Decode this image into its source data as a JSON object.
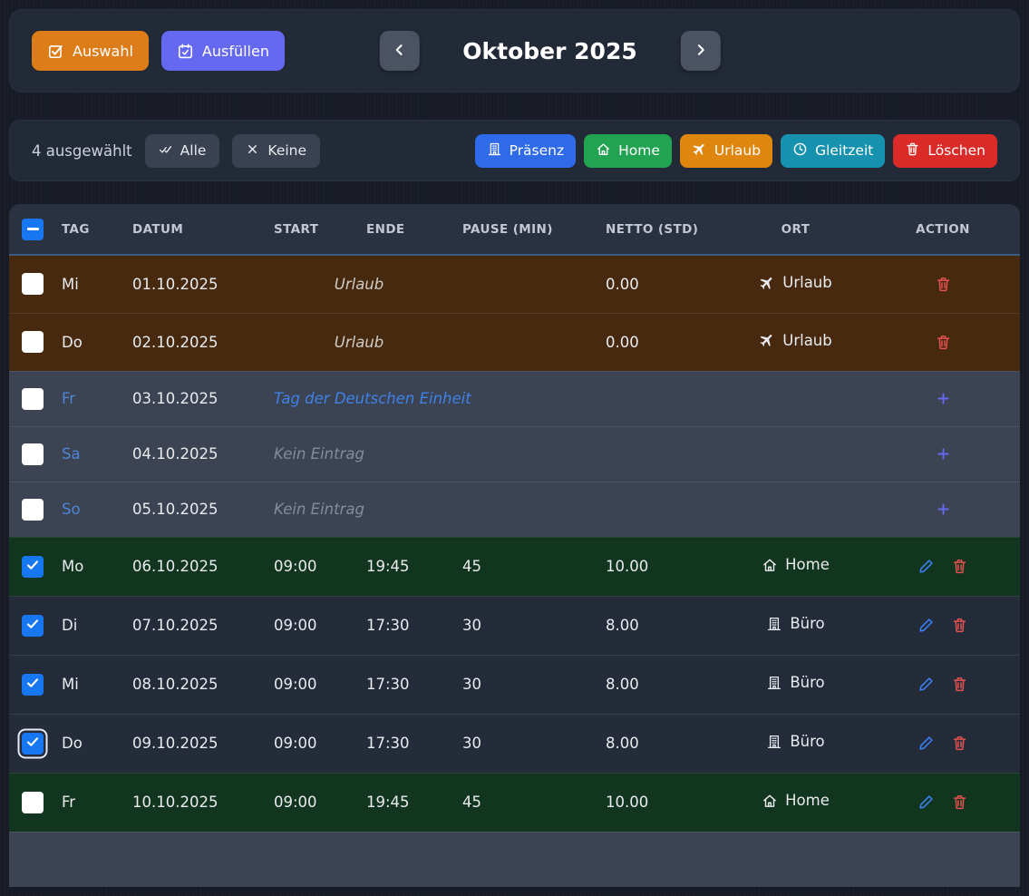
{
  "toolbar": {
    "auswahl_label": "Auswahl",
    "auswahl_icon": "checkbox-check-icon",
    "ausfuellen_label": "Ausfüllen",
    "ausfuellen_icon": "calendar-check-icon",
    "prev_icon": "chevron-left-icon",
    "next_icon": "chevron-right-icon",
    "month_title": "Oktober 2025"
  },
  "selection_bar": {
    "selected_count": "4 ausgewählt",
    "select_all_label": "Alle",
    "select_all_icon": "double-check-icon",
    "select_none_label": "Keine",
    "select_none_icon": "x-icon",
    "bulk_actions": [
      {
        "label": "Präsenz",
        "icon": "building-icon",
        "color": "#2f6ae8"
      },
      {
        "label": "Home",
        "icon": "home-icon",
        "color": "#21a351"
      },
      {
        "label": "Urlaub",
        "icon": "plane-icon",
        "color": "#df860e"
      },
      {
        "label": "Gleitzeit",
        "icon": "clock-icon",
        "color": "#1692ae"
      },
      {
        "label": "Löschen",
        "icon": "trash-icon",
        "color": "#da2b29"
      }
    ]
  },
  "table": {
    "headers": [
      "Tag",
      "Datum",
      "Start",
      "Ende",
      "Pause (Min)",
      "Netto (Std)",
      "Ort",
      "Action"
    ],
    "rows": [
      {
        "tag": "Mi",
        "datum": "01.10.2025",
        "note": "Urlaub",
        "note_type": "vacation",
        "netto": "0.00",
        "ort": "Urlaub",
        "ort_icon": "plane-icon",
        "row_actions": [
          "delete"
        ],
        "checked": false,
        "variant": "vacation"
      },
      {
        "tag": "Do",
        "datum": "02.10.2025",
        "note": "Urlaub",
        "note_type": "vacation",
        "netto": "0.00",
        "ort": "Urlaub",
        "ort_icon": "plane-icon",
        "row_actions": [
          "delete"
        ],
        "checked": false,
        "variant": "vacation"
      },
      {
        "tag": "Fr",
        "datum": "03.10.2025",
        "note": "Tag der Deutschen Einheit",
        "note_type": "holiday",
        "row_actions": [
          "add"
        ],
        "checked": false,
        "variant": "weekend",
        "day_highlight": true
      },
      {
        "tag": "Sa",
        "datum": "04.10.2025",
        "note": "Kein Eintrag",
        "note_type": "empty",
        "row_actions": [
          "add"
        ],
        "checked": false,
        "variant": "weekend",
        "day_highlight": true
      },
      {
        "tag": "So",
        "datum": "05.10.2025",
        "note": "Kein Eintrag",
        "note_type": "empty",
        "row_actions": [
          "add"
        ],
        "checked": false,
        "variant": "weekend",
        "day_highlight": true
      },
      {
        "tag": "Mo",
        "datum": "06.10.2025",
        "start": "09:00",
        "ende": "19:45",
        "pause": "45",
        "netto": "10.00",
        "ort": "Home",
        "ort_icon": "home-icon",
        "row_actions": [
          "edit",
          "delete"
        ],
        "checked": true,
        "variant": "home"
      },
      {
        "tag": "Di",
        "datum": "07.10.2025",
        "start": "09:00",
        "ende": "17:30",
        "pause": "30",
        "netto": "8.00",
        "ort": "Büro",
        "ort_icon": "building-icon",
        "row_actions": [
          "edit",
          "delete"
        ],
        "checked": true,
        "variant": "office"
      },
      {
        "tag": "Mi",
        "datum": "08.10.2025",
        "start": "09:00",
        "ende": "17:30",
        "pause": "30",
        "netto": "8.00",
        "ort": "Büro",
        "ort_icon": "building-icon",
        "row_actions": [
          "edit",
          "delete"
        ],
        "checked": true,
        "variant": "office"
      },
      {
        "tag": "Do",
        "datum": "09.10.2025",
        "start": "09:00",
        "ende": "17:30",
        "pause": "30",
        "netto": "8.00",
        "ort": "Büro",
        "ort_icon": "building-icon",
        "row_actions": [
          "edit",
          "delete"
        ],
        "checked": true,
        "focused": true,
        "variant": "office"
      },
      {
        "tag": "Fr",
        "datum": "10.10.2025",
        "start": "09:00",
        "ende": "19:45",
        "pause": "45",
        "netto": "10.00",
        "ort": "Home",
        "ort_icon": "home-icon",
        "row_actions": [
          "edit",
          "delete"
        ],
        "checked": false,
        "variant": "home"
      },
      {
        "variant": "weekend",
        "partial": true
      }
    ]
  },
  "colors": {
    "page_bg": "#171b26",
    "panel_bg": "#222937",
    "header_bg": "#2a3140",
    "row_vacation": "#46290f",
    "row_weekend": "#3c4352",
    "row_home": "#12351f",
    "row_office": "#242c3a",
    "checkbox_blue": "#1677f0",
    "accent_orange": "#dd7d19",
    "accent_indigo": "#6568f1",
    "edit_blue": "#3b82f6",
    "delete_red": "#e35150",
    "day_blue": "#4f86d6",
    "holiday_blue": "#3f82e8",
    "nav_btn": "#4b5362",
    "chip": "#3a4150"
  }
}
